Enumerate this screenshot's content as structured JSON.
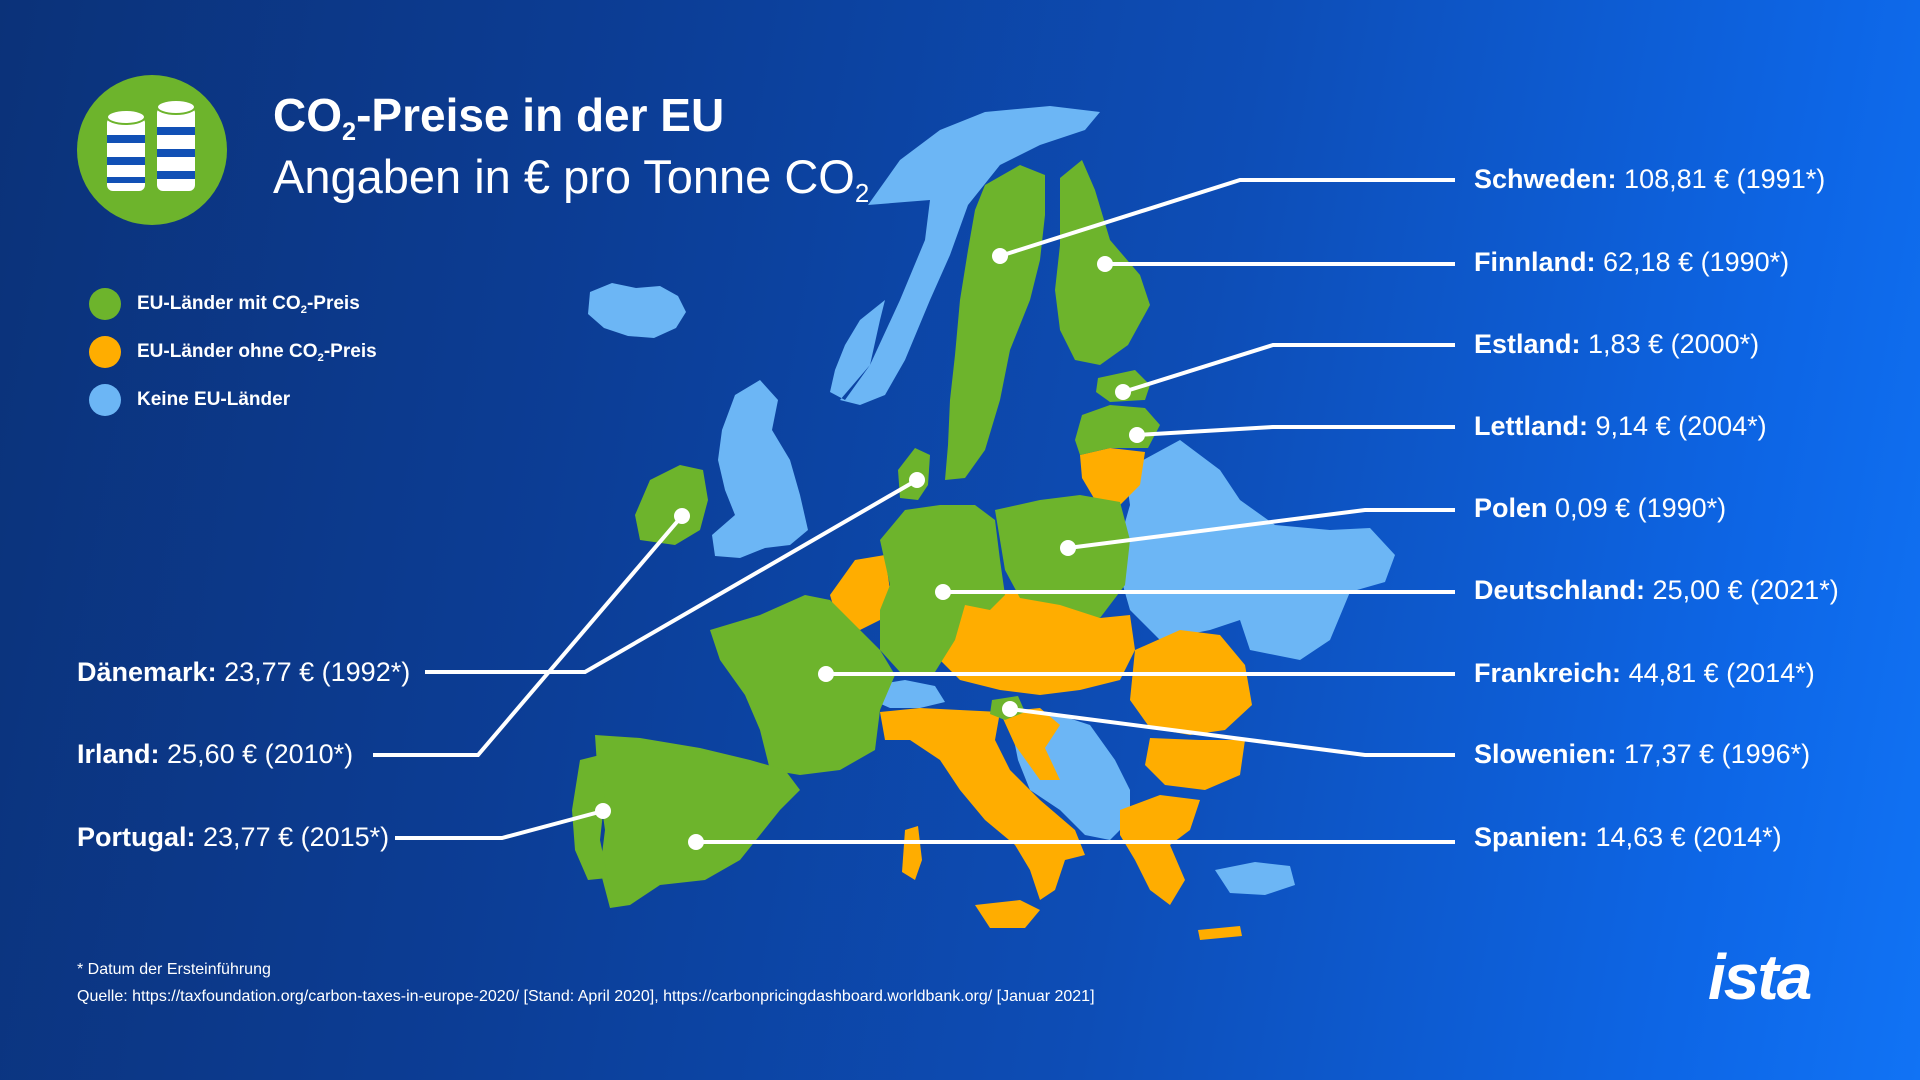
{
  "header": {
    "title_pre": "CO",
    "title_sub": "2",
    "title_post": "-Preise in der EU",
    "subtitle_pre": "Angaben in € pro Tonne CO",
    "subtitle_sub": "2"
  },
  "legend": [
    {
      "pre": "EU-Länder mit CO",
      "sub": "2",
      "post": "-Preis",
      "color": "#6db42c"
    },
    {
      "pre": "EU-Länder ohne CO",
      "sub": "2",
      "post": "-Preis",
      "color": "#ffad00"
    },
    {
      "pre": "Keine EU-Länder",
      "sub": "",
      "post": "",
      "color": "#6cb6f5"
    }
  ],
  "callouts": {
    "schweden": {
      "country": "Schweden:",
      "value": "108,81 € (1991*)"
    },
    "finnland": {
      "country": "Finnland:",
      "value": "62,18 € (1990*)"
    },
    "estland": {
      "country": "Estland:",
      "value": "1,83 € (2000*)"
    },
    "lettland": {
      "country": "Lettland:",
      "value": "9,14 € (2004*)"
    },
    "polen": {
      "country": "Polen",
      "value": "0,09 € (1990*)"
    },
    "deutschland": {
      "country": "Deutschland:",
      "value": "25,00 € (2021*)"
    },
    "frankreich": {
      "country": "Frankreich:",
      "value": "44,81 € (2014*)"
    },
    "slowenien": {
      "country": "Slowenien:",
      "value": "17,37 € (1996*)"
    },
    "spanien": {
      "country": "Spanien:",
      "value": "14,63 € (2014*)"
    },
    "daenemark": {
      "country": "Dänemark:",
      "value": "23,77 € (1992*)"
    },
    "irland": {
      "country": "Irland:",
      "value": "25,60 € (2010*)"
    },
    "portugal": {
      "country": "Portugal:",
      "value": "23,77 € (2015*)"
    }
  },
  "footer": {
    "footnote": "* Datum der Ersteinführung",
    "source": "Quelle: https://taxfoundation.org/carbon-taxes-in-europe-2020/ [Stand: April 2020], https://carbonpricingdashboard.worldbank.org/ [Januar 2021]",
    "brand": "ista"
  },
  "colors": {
    "eu_with_price": "#6db42c",
    "eu_without_price": "#ffad00",
    "non_eu": "#6cb6f5",
    "background": "#0c3d95"
  },
  "icons": {
    "logo": "coin-stacks-icon"
  }
}
